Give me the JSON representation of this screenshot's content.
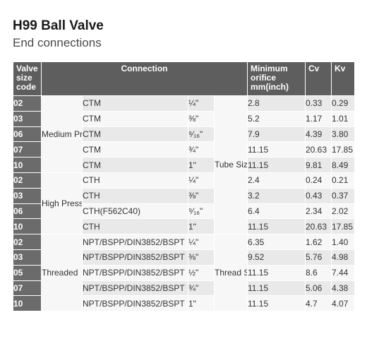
{
  "title": "H99 Ball Valve",
  "subtitle": "End connections",
  "headers": {
    "size_code": "Valve size code",
    "connection": "Connection",
    "orifice": "Minimum orifice mm(inch)",
    "cv": "Cv",
    "kv": "Kv"
  },
  "groups": {
    "medium": "Medium Pressure Coned & Threaded",
    "high": "High Pressure Coned & Threaded",
    "threaded": "Threaded",
    "tube_size": "Tube Size",
    "thread_size": "Thread Size"
  },
  "rows": [
    {
      "code": "02",
      "conn": "CTM",
      "size": "¼\"",
      "orifice": "2.8",
      "cv": "0.33",
      "kv": "0.29"
    },
    {
      "code": "03",
      "conn": "CTM",
      "size": "⅜\"",
      "orifice": "5.2",
      "cv": "1.17",
      "kv": "1.01"
    },
    {
      "code": "06",
      "conn": "CTM",
      "size": "⁹⁄₁₆\"",
      "orifice": "7.9",
      "cv": "4.39",
      "kv": "3.80"
    },
    {
      "code": "07",
      "conn": "CTM",
      "size": "¾\"",
      "orifice": "11.15",
      "cv": "20.63",
      "kv": "17.85"
    },
    {
      "code": "10",
      "conn": "CTM",
      "size": "1\"",
      "orifice": "11.15",
      "cv": "9.81",
      "kv": "8.49"
    },
    {
      "code": "02",
      "conn": "CTH",
      "size": "¼\"",
      "orifice": "2.4",
      "cv": "0.24",
      "kv": "0.21"
    },
    {
      "code": "03",
      "conn": "CTH",
      "size": "⅜\"",
      "orifice": "3.2",
      "cv": "0.43",
      "kv": "0.37"
    },
    {
      "code": "06",
      "conn": "CTH(F562C40)",
      "size": "⁹⁄₁₆\"",
      "orifice": "6.4",
      "cv": "2.34",
      "kv": "2.02"
    },
    {
      "code": "10",
      "conn": "CTH",
      "size": "1\"",
      "orifice": "11.15",
      "cv": "20.63",
      "kv": "17.85"
    },
    {
      "code": "02",
      "conn": "NPT/BSPP/DIN3852/BSPT",
      "size": "¼\"",
      "orifice": "6.35",
      "cv": "1.62",
      "kv": "1.40"
    },
    {
      "code": "03",
      "conn": "NPT/BSPP/DIN3852/BSPT",
      "size": "⅜\"",
      "orifice": "9.52",
      "cv": "5.76",
      "kv": "4.98"
    },
    {
      "code": "05",
      "conn": "NPT/BSPP/DIN3852/BSPT",
      "size": "½\"",
      "orifice": "11.15",
      "cv": "8.6",
      "kv": "7.44"
    },
    {
      "code": "07",
      "conn": "NPT/BSPP/DIN3852/BSPT",
      "size": "¾\"",
      "orifice": "11.15",
      "cv": "5.06",
      "kv": "4.38"
    },
    {
      "code": "10",
      "conn": "NPT/BSPP/DIN3852/BSPT",
      "size": "1\"",
      "orifice": "11.15",
      "cv": "4.7",
      "kv": "4.07"
    }
  ]
}
